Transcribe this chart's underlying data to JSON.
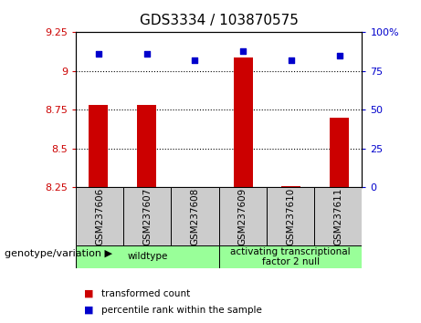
{
  "title": "GDS3334 / 103870575",
  "samples": [
    "GSM237606",
    "GSM237607",
    "GSM237608",
    "GSM237609",
    "GSM237610",
    "GSM237611"
  ],
  "transformed_counts": [
    8.78,
    8.78,
    8.25,
    9.09,
    8.26,
    8.7
  ],
  "percentile_ranks": [
    86,
    86,
    82,
    88,
    82,
    85
  ],
  "ylim_left": [
    8.25,
    9.25
  ],
  "ylim_right": [
    0,
    100
  ],
  "yticks_left": [
    8.25,
    8.5,
    8.75,
    9.0,
    9.25
  ],
  "ytick_labels_left": [
    "8.25",
    "8.5",
    "8.75",
    "9",
    "9.25"
  ],
  "yticks_right": [
    0,
    25,
    50,
    75,
    100
  ],
  "ytick_labels_right": [
    "0",
    "25",
    "50",
    "75",
    "100%"
  ],
  "grid_values": [
    9.0,
    8.75,
    8.5
  ],
  "bar_color": "#CC0000",
  "dot_color": "#0000CC",
  "bar_bottom": 8.25,
  "groups": [
    {
      "label": "wildtype",
      "samples": [
        0,
        1,
        2
      ],
      "color": "#99FF99"
    },
    {
      "label": "activating transcriptional\nfactor 2 null",
      "samples": [
        3,
        4,
        5
      ],
      "color": "#99FF99"
    }
  ],
  "group_label_prefix": "genotype/variation",
  "legend_bar_label": "transformed count",
  "legend_dot_label": "percentile rank within the sample",
  "tick_label_color_left": "#CC0000",
  "tick_label_color_right": "#0000CC"
}
